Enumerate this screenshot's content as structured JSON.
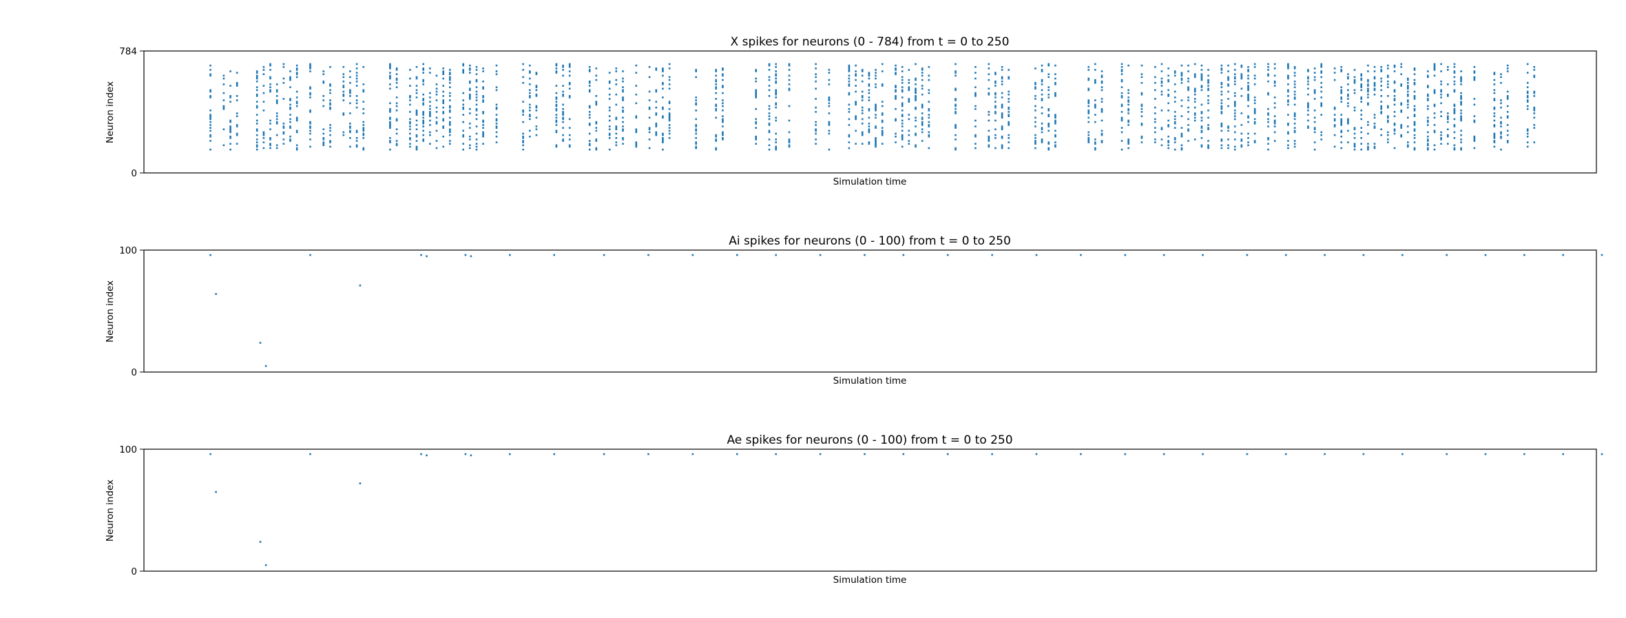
{
  "colors": {
    "marker": "#1f77b4",
    "axes": "#000000",
    "background": "#ffffff"
  },
  "chart_data": [
    {
      "type": "scatter",
      "title": "X spikes for neurons (0 - 784) from t = 0 to 250",
      "xlabel": "Simulation time",
      "ylabel": "Neuron index",
      "ylim": [
        0,
        784
      ],
      "yticks": [
        "0",
        "784"
      ],
      "xlim": [
        -12,
        250
      ],
      "xticks": [],
      "grid": false,
      "legend": "none",
      "raster": {
        "t_start": 0,
        "t_end": 239,
        "dt": 1.2,
        "dense_band": [
          150,
          650
        ],
        "sparse_band": [
          150,
          700
        ],
        "density": 0.3,
        "description_seed": 7
      },
      "series": [
        {
          "values": []
        }
      ]
    },
    {
      "type": "scatter",
      "title": "Ai spikes for neurons (0 - 100) from t = 0 to 250",
      "xlabel": "Simulation time",
      "ylabel": "Neuron index",
      "ylim": [
        0,
        100
      ],
      "yticks": [
        "0",
        "100"
      ],
      "xlim": [
        -12,
        250
      ],
      "xticks": [],
      "grid": false,
      "legend": "none",
      "series": [
        {
          "x": [
            0,
            1,
            9,
            10,
            18,
            27,
            38,
            39,
            46,
            47,
            54,
            62,
            71,
            79,
            87,
            95,
            102,
            110,
            118,
            125,
            133,
            141,
            149,
            157,
            165,
            172,
            179,
            187,
            194,
            201,
            208,
            215,
            223,
            230,
            237,
            244,
            251
          ],
          "y": [
            96,
            64,
            24,
            5,
            96,
            71,
            96,
            95,
            96,
            95,
            96,
            96,
            96,
            96,
            96,
            96,
            96,
            96,
            96,
            96,
            96,
            96,
            96,
            96,
            96,
            96,
            96,
            96,
            96,
            96,
            96,
            96,
            96,
            96,
            96,
            96,
            96
          ]
        }
      ]
    },
    {
      "type": "scatter",
      "title": "Ae spikes for neurons (0 - 100) from t = 0 to 250",
      "xlabel": "Simulation time",
      "ylabel": "Neuron index",
      "ylim": [
        0,
        100
      ],
      "yticks": [
        "0",
        "100"
      ],
      "xlim": [
        -12,
        250
      ],
      "xticks": [],
      "grid": false,
      "legend": "none",
      "series": [
        {
          "x": [
            0,
            1,
            9,
            10,
            18,
            27,
            38,
            39,
            46,
            47,
            54,
            62,
            71,
            79,
            87,
            95,
            102,
            110,
            118,
            125,
            133,
            141,
            149,
            157,
            165,
            172,
            179,
            187,
            194,
            201,
            208,
            215,
            223,
            230,
            237,
            244,
            251
          ],
          "y": [
            96,
            65,
            24,
            5,
            96,
            72,
            96,
            95,
            96,
            95,
            96,
            96,
            96,
            96,
            96,
            96,
            96,
            96,
            96,
            96,
            96,
            96,
            96,
            96,
            96,
            96,
            96,
            96,
            96,
            96,
            96,
            96,
            96,
            96,
            96,
            96,
            96
          ]
        }
      ]
    }
  ]
}
